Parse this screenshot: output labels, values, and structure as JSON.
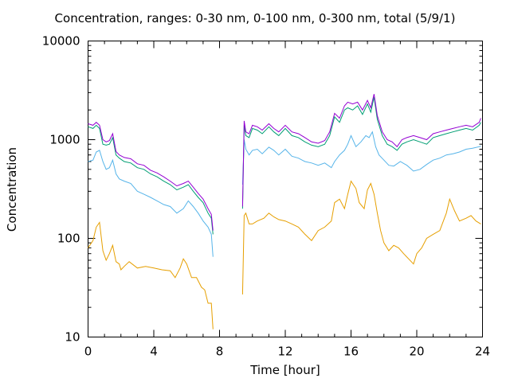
{
  "chart_data": {
    "type": "line",
    "title": "Concentration, ranges: 0-30 nm, 0-100 nm, 0-300 nm, total (5/9/1)",
    "xlabel": "Time [hour]",
    "ylabel": "Concentration",
    "xlim": [
      0,
      24
    ],
    "ylim": [
      10,
      10000
    ],
    "yscale": "log",
    "xticks": [
      0,
      4,
      8,
      12,
      16,
      20,
      24
    ],
    "xtick_labels": [
      "0",
      "4",
      "8",
      "12",
      "16",
      "20",
      "24"
    ],
    "yticks": [
      10,
      100,
      1000,
      10000
    ],
    "ytick_labels": [
      "10",
      "100",
      "1000",
      "10000"
    ],
    "grid": false,
    "legend": "none",
    "series": [
      {
        "color": "#e69f00",
        "x": [
          0,
          0.3,
          0.5,
          0.7,
          0.9,
          1.1,
          1.3,
          1.5,
          1.7,
          1.9,
          2.0,
          2.2,
          2.5,
          3.0,
          3.5,
          4.0,
          4.5,
          5.0,
          5.3,
          5.6,
          5.8,
          6.0,
          6.3,
          6.6,
          6.9,
          7.1,
          7.3,
          7.5,
          7.6,
          9.4,
          9.5,
          9.6,
          9.8,
          10.0,
          10.3,
          10.7,
          11.0,
          11.3,
          11.6,
          12.0,
          12.4,
          12.8,
          13.2,
          13.6,
          14.0,
          14.4,
          14.8,
          15.0,
          15.3,
          15.6,
          15.8,
          16.0,
          16.3,
          16.5,
          16.8,
          17.0,
          17.2,
          17.4,
          17.6,
          17.8,
          18.0,
          18.3,
          18.6,
          18.9,
          19.2,
          19.5,
          19.8,
          20.0,
          20.3,
          20.6,
          21.0,
          21.4,
          21.8,
          22.0,
          22.3,
          22.6,
          23.0,
          23.3,
          23.6,
          23.9
        ],
        "values": [
          80,
          95,
          130,
          145,
          75,
          60,
          70,
          85,
          58,
          55,
          48,
          52,
          58,
          50,
          52,
          50,
          48,
          47,
          40,
          50,
          62,
          55,
          40,
          40,
          32,
          30,
          22,
          22,
          12,
          27,
          170,
          180,
          140,
          140,
          150,
          160,
          180,
          165,
          155,
          150,
          140,
          130,
          110,
          95,
          120,
          130,
          150,
          230,
          250,
          200,
          280,
          380,
          320,
          230,
          200,
          310,
          360,
          280,
          180,
          120,
          90,
          75,
          85,
          80,
          70,
          62,
          55,
          70,
          80,
          100,
          110,
          120,
          180,
          250,
          190,
          150,
          160,
          170,
          150,
          140
        ]
      },
      {
        "color": "#56b4e9",
        "x": [
          0,
          0.3,
          0.5,
          0.7,
          0.9,
          1.1,
          1.3,
          1.5,
          1.7,
          1.9,
          2.2,
          2.6,
          3.0,
          3.4,
          3.8,
          4.2,
          4.6,
          5.0,
          5.4,
          5.8,
          6.1,
          6.4,
          6.7,
          7.0,
          7.3,
          7.5,
          7.6,
          9.4,
          9.5,
          9.6,
          9.8,
          10.0,
          10.3,
          10.6,
          11.0,
          11.3,
          11.6,
          12.0,
          12.4,
          12.8,
          13.2,
          13.6,
          14.0,
          14.4,
          14.8,
          15.0,
          15.3,
          15.6,
          15.8,
          16.0,
          16.3,
          16.6,
          16.9,
          17.1,
          17.3,
          17.5,
          17.7,
          18.0,
          18.3,
          18.6,
          19.0,
          19.4,
          19.8,
          20.2,
          20.6,
          21.0,
          21.4,
          21.8,
          22.2,
          22.6,
          23.0,
          23.4,
          23.8,
          23.9
        ],
        "values": [
          600,
          620,
          750,
          780,
          600,
          500,
          520,
          620,
          450,
          400,
          380,
          360,
          300,
          280,
          260,
          240,
          220,
          210,
          180,
          200,
          240,
          210,
          180,
          150,
          130,
          110,
          65,
          350,
          1000,
          800,
          700,
          780,
          800,
          720,
          840,
          780,
          700,
          800,
          680,
          650,
          600,
          580,
          550,
          580,
          520,
          600,
          700,
          780,
          900,
          1100,
          850,
          950,
          1100,
          1050,
          1200,
          850,
          700,
          620,
          550,
          540,
          600,
          550,
          480,
          500,
          560,
          620,
          650,
          700,
          720,
          750,
          800,
          820,
          850,
          860
        ]
      },
      {
        "color": "#009e73",
        "x": [
          0,
          0.3,
          0.5,
          0.7,
          0.9,
          1.1,
          1.3,
          1.5,
          1.7,
          1.9,
          2.2,
          2.6,
          3.0,
          3.4,
          3.8,
          4.2,
          4.6,
          5.0,
          5.4,
          5.8,
          6.1,
          6.4,
          6.7,
          7.0,
          7.3,
          7.5,
          7.6,
          9.4,
          9.5,
          9.6,
          9.8,
          10.0,
          10.3,
          10.6,
          11.0,
          11.3,
          11.6,
          12.0,
          12.4,
          12.8,
          13.2,
          13.6,
          14.0,
          14.4,
          14.7,
          15.0,
          15.3,
          15.6,
          15.8,
          16.1,
          16.4,
          16.7,
          17.0,
          17.2,
          17.4,
          17.6,
          17.9,
          18.2,
          18.5,
          18.8,
          19.1,
          19.4,
          19.8,
          20.2,
          20.6,
          21.0,
          21.4,
          21.8,
          22.2,
          22.6,
          23.0,
          23.4,
          23.8,
          23.9
        ],
        "values": [
          1350,
          1300,
          1400,
          1300,
          900,
          880,
          900,
          1050,
          700,
          650,
          600,
          580,
          520,
          500,
          450,
          420,
          380,
          350,
          310,
          330,
          350,
          300,
          260,
          230,
          180,
          160,
          110,
          200,
          1400,
          1100,
          1050,
          1300,
          1250,
          1150,
          1350,
          1200,
          1100,
          1300,
          1100,
          1050,
          950,
          880,
          850,
          900,
          1100,
          1700,
          1500,
          2000,
          2100,
          2000,
          2200,
          1800,
          2300,
          1900,
          2700,
          1600,
          1100,
          900,
          850,
          780,
          900,
          950,
          1000,
          950,
          900,
          1050,
          1100,
          1150,
          1200,
          1250,
          1300,
          1250,
          1400,
          1500
        ]
      },
      {
        "color": "#9400d3",
        "x": [
          0,
          0.3,
          0.5,
          0.7,
          0.9,
          1.1,
          1.3,
          1.5,
          1.7,
          1.9,
          2.2,
          2.6,
          3.0,
          3.4,
          3.8,
          4.2,
          4.6,
          5.0,
          5.4,
          5.8,
          6.1,
          6.4,
          6.7,
          7.0,
          7.3,
          7.5,
          7.6,
          9.4,
          9.5,
          9.6,
          9.8,
          10.0,
          10.3,
          10.6,
          11.0,
          11.3,
          11.6,
          12.0,
          12.4,
          12.8,
          13.2,
          13.6,
          14.0,
          14.4,
          14.7,
          15.0,
          15.3,
          15.6,
          15.8,
          16.1,
          16.4,
          16.7,
          17.0,
          17.2,
          17.4,
          17.6,
          17.9,
          18.2,
          18.5,
          18.8,
          19.1,
          19.4,
          19.8,
          20.2,
          20.6,
          21.0,
          21.4,
          21.8,
          22.2,
          22.6,
          23.0,
          23.4,
          23.8,
          23.9
        ],
        "values": [
          1450,
          1400,
          1500,
          1400,
          1000,
          950,
          980,
          1150,
          760,
          700,
          660,
          640,
          570,
          550,
          490,
          460,
          420,
          380,
          340,
          360,
          380,
          330,
          285,
          250,
          200,
          175,
          120,
          210,
          1550,
          1200,
          1150,
          1400,
          1350,
          1250,
          1450,
          1300,
          1200,
          1400,
          1200,
          1150,
          1050,
          950,
          920,
          980,
          1200,
          1850,
          1650,
          2200,
          2400,
          2300,
          2400,
          2000,
          2500,
          2100,
          2900,
          1750,
          1200,
          1000,
          950,
          850,
          1000,
          1050,
          1100,
          1050,
          1000,
          1150,
          1200,
          1250,
          1300,
          1350,
          1400,
          1350,
          1500,
          1650
        ]
      }
    ]
  }
}
